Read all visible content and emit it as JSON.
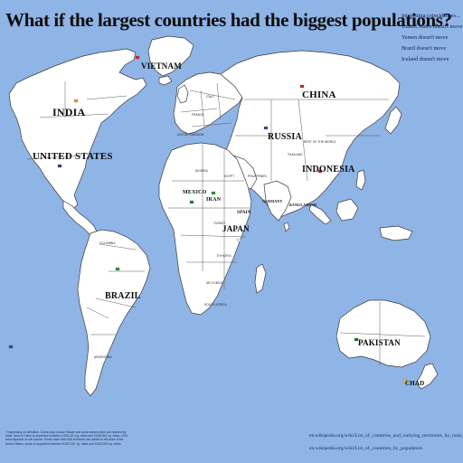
{
  "title": "What if the largest countries had the biggest populations?",
  "notes": [
    "Interesting coincidences...",
    "United States doesn't move*",
    "Yemen doesn't move",
    "Brazil doesn't move",
    "Iceland doesn't move"
  ],
  "labels": {
    "vietnam": "VIETNAM",
    "india": "INDIA",
    "united_states": "UNITED STATES",
    "china": "CHINA",
    "russia": "RUSSIA",
    "indonesia": "INDONESIA",
    "brazil": "BRAZIL",
    "pakistan": "PAKISTAN",
    "japan": "JAPAN",
    "mexico": "MEXICO",
    "iran": "IRAN",
    "germany": "GERMANY",
    "bangladesh": "BANGLADESH",
    "nigeria": "NIGERIA",
    "chad": "CHAD",
    "egypt": "EGYPT",
    "spain": "SPAIN",
    "ethiopia": "ETHIOPIA",
    "philippines": "PHILIPPINES",
    "thailand": "THAILAND",
    "turkey": "TURKEY",
    "congo": "DR CONGO",
    "uk": "UNITED KINGDOM",
    "france": "FRANCE",
    "italy": "ITALY",
    "south_africa": "SOUTH AFRICA",
    "colombia": "COLOMBIA",
    "argentina": "ARGENTINA",
    "canada_note": "REST OF THE WORLD"
  },
  "footnote": "* Depending on definition. China may include Taiwan and some areas which are claimed by India. Area of China is anywhere between 9,326,410 sq. miles and 9,596,961 sq. miles. USA area depends on the source. Some claim that USA territories are added to the area of the United States, which is anywhere between 9,525,067 sq. miles and 9,833,520 sq. miles.",
  "sources": [
    "en.wikipedia.org/wiki/List_of_countries_and_outlying_territories_by_total_area",
    "en.wikipedia.org/wiki/List_of_countries_by_population"
  ],
  "colors": {
    "ocean": "#8fb4e6",
    "land": "#ffffff",
    "border": "#3a3a3a"
  }
}
